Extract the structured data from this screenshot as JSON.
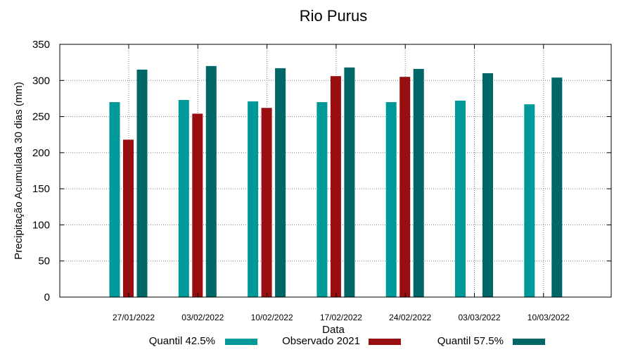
{
  "chart_data": {
    "type": "bar",
    "title": "Rio Purus",
    "xlabel": "Data",
    "ylabel": "Precipitação Acumulada 30 dias (mm)",
    "ylim": [
      0,
      350
    ],
    "yticks": [
      0,
      50,
      100,
      150,
      200,
      250,
      300,
      350
    ],
    "grid": true,
    "legend_position": "bottom",
    "categories": [
      "27/01/2022",
      "03/02/2022",
      "10/02/2022",
      "17/02/2022",
      "24/02/2022",
      "03/03/2022",
      "10/03/2022"
    ],
    "series": [
      {
        "name": "Quantil 42.5%",
        "color": "#009999",
        "values": [
          270,
          273,
          271,
          270,
          270,
          272,
          267
        ]
      },
      {
        "name": "Observado 2021",
        "color": "#990f0f",
        "values": [
          218,
          254,
          262,
          306,
          305,
          null,
          null
        ]
      },
      {
        "name": "Quantil 57.5%",
        "color": "#006666",
        "values": [
          315,
          320,
          317,
          318,
          316,
          310,
          304
        ]
      }
    ]
  }
}
